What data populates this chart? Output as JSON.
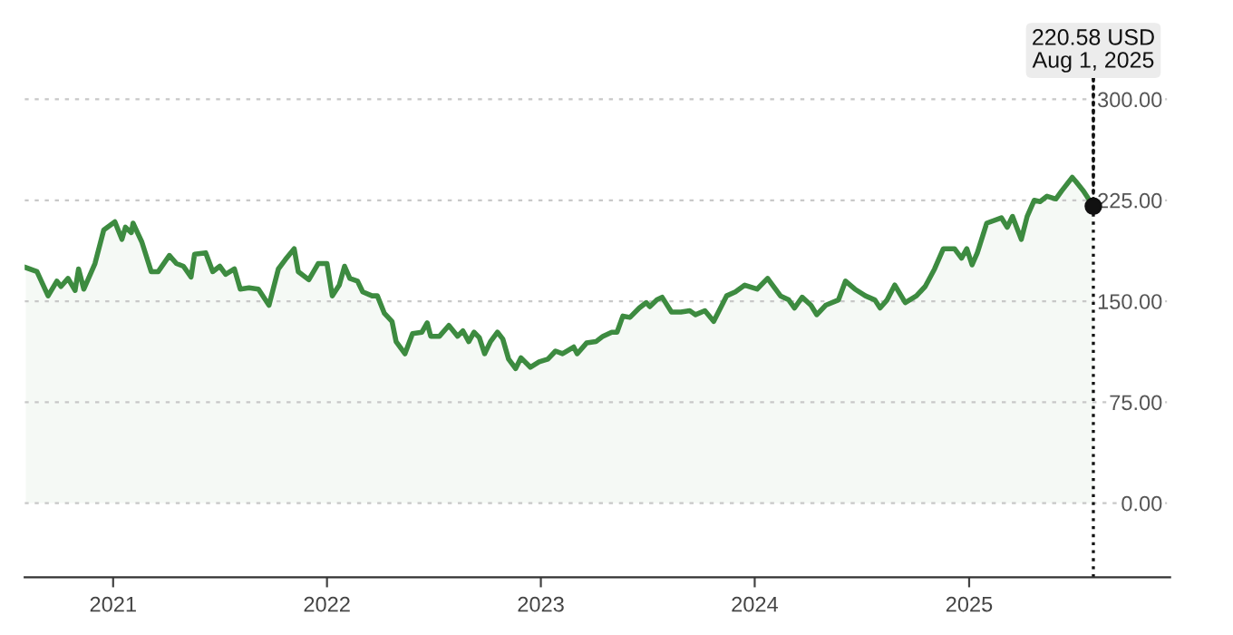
{
  "chart_data": {
    "type": "area",
    "x": [
      "2020-08-05",
      "2020-08-24",
      "2020-09-12",
      "2020-09-27",
      "2020-10-04",
      "2020-10-16",
      "2020-10-28",
      "2020-11-03",
      "2020-11-12",
      "2020-12-01",
      "2020-12-16",
      "2021-01-04",
      "2021-01-16",
      "2021-01-22",
      "2021-02-01",
      "2021-02-04",
      "2021-02-19",
      "2021-03-07",
      "2021-03-19",
      "2021-04-07",
      "2021-04-19",
      "2021-05-01",
      "2021-05-14",
      "2021-05-20",
      "2021-06-08",
      "2021-06-20",
      "2021-07-02",
      "2021-07-12",
      "2021-07-27",
      "2021-08-06",
      "2021-08-21",
      "2021-09-06",
      "2021-09-24",
      "2021-10-10",
      "2021-10-22",
      "2021-11-06",
      "2021-11-13",
      "2021-12-01",
      "2021-12-17",
      "2022-01-01",
      "2022-01-10",
      "2022-01-22",
      "2022-01-31",
      "2022-02-09",
      "2022-02-22",
      "2022-03-03",
      "2022-03-19",
      "2022-03-28",
      "2022-04-09",
      "2022-04-22",
      "2022-04-29",
      "2022-05-14",
      "2022-05-27",
      "2022-06-12",
      "2022-06-21",
      "2022-06-27",
      "2022-07-12",
      "2022-07-28",
      "2022-08-12",
      "2022-08-21",
      "2022-08-31",
      "2022-09-09",
      "2022-09-18",
      "2022-09-27",
      "2022-10-07",
      "2022-10-19",
      "2022-10-28",
      "2022-11-07",
      "2022-11-19",
      "2022-11-28",
      "2022-12-14",
      "2022-12-29",
      "2023-01-13",
      "2023-01-26",
      "2023-02-07",
      "2023-02-26",
      "2023-03-04",
      "2023-03-20",
      "2023-04-05",
      "2023-04-17",
      "2023-05-02",
      "2023-05-11",
      "2023-05-21",
      "2023-06-02",
      "2023-06-18",
      "2023-06-30",
      "2023-07-06",
      "2023-07-18",
      "2023-07-27",
      "2023-08-12",
      "2023-08-28",
      "2023-09-12",
      "2023-09-22",
      "2023-10-08",
      "2023-10-23",
      "2023-11-14",
      "2023-11-29",
      "2023-12-15",
      "2024-01-05",
      "2024-01-23",
      "2024-02-14",
      "2024-02-28",
      "2024-03-09",
      "2024-03-22",
      "2024-04-06",
      "2024-04-16",
      "2024-05-01",
      "2024-05-23",
      "2024-06-04",
      "2024-06-20",
      "2024-07-08",
      "2024-07-24",
      "2024-08-02",
      "2024-08-14",
      "2024-08-27",
      "2024-09-14",
      "2024-10-03",
      "2024-10-18",
      "2024-11-03",
      "2024-11-18",
      "2024-12-07",
      "2024-12-19",
      "2024-12-28",
      "2025-01-06",
      "2025-01-15",
      "2025-01-31",
      "2025-02-25",
      "2025-03-07",
      "2025-03-16",
      "2025-03-31",
      "2025-04-10",
      "2025-04-22",
      "2025-05-02",
      "2025-05-14",
      "2025-05-29",
      "2025-06-08",
      "2025-06-26",
      "2025-07-02",
      "2025-07-15",
      "2025-08-01"
    ],
    "series": [
      {
        "color": "#3d8b40",
        "values": [
          175,
          172,
          154,
          165,
          161,
          167,
          158,
          174,
          159,
          178,
          203,
          209,
          196,
          205,
          201,
          208,
          194,
          172,
          172,
          184,
          178,
          176,
          168,
          185,
          186,
          172,
          176,
          170,
          174,
          159,
          160,
          159,
          147,
          174,
          181,
          189,
          172,
          166,
          178,
          178,
          154,
          162,
          176,
          167,
          165,
          157,
          154,
          154,
          141,
          135,
          120,
          111,
          126,
          127,
          134,
          124,
          124,
          132,
          124,
          128,
          120,
          127,
          123,
          111,
          120,
          127,
          122,
          107,
          100,
          108,
          101,
          105,
          107,
          113,
          111,
          116,
          111,
          119,
          120,
          124,
          127,
          127,
          139,
          138,
          145,
          149,
          146,
          151,
          153,
          142,
          142,
          143,
          140,
          143,
          135,
          154,
          157,
          162,
          159,
          167,
          154,
          151,
          145,
          153,
          147,
          140,
          147,
          151,
          165,
          159,
          154,
          151,
          145,
          151,
          162,
          149,
          154,
          161,
          174,
          189,
          189,
          182,
          189,
          177,
          186,
          208,
          212,
          205,
          213,
          196,
          213,
          225,
          224,
          228,
          226,
          232,
          242,
          239,
          232,
          220.58
        ]
      }
    ],
    "xlim": [
      "2020-08-03",
      "2025-12-10"
    ],
    "xticks": [
      "2021",
      "2022",
      "2023",
      "2024",
      "2025"
    ],
    "ylim": [
      -55,
      320
    ],
    "yticks": [
      {
        "value": 0,
        "label": "0.00"
      },
      {
        "value": 75,
        "label": "75.00"
      },
      {
        "value": 150,
        "label": "150.00"
      },
      {
        "value": 225,
        "label": "225.00"
      },
      {
        "value": 300,
        "label": "300.00"
      }
    ],
    "grid": "y",
    "ref_lines": [
      {
        "axis": "x",
        "value": "2025-08-01",
        "color": "#111111",
        "line_style": "dotted"
      }
    ],
    "annotations": [
      {
        "text": "220.58 USD\nAug 1, 2025",
        "x": "2025-08-01",
        "y": 220.58
      }
    ]
  }
}
